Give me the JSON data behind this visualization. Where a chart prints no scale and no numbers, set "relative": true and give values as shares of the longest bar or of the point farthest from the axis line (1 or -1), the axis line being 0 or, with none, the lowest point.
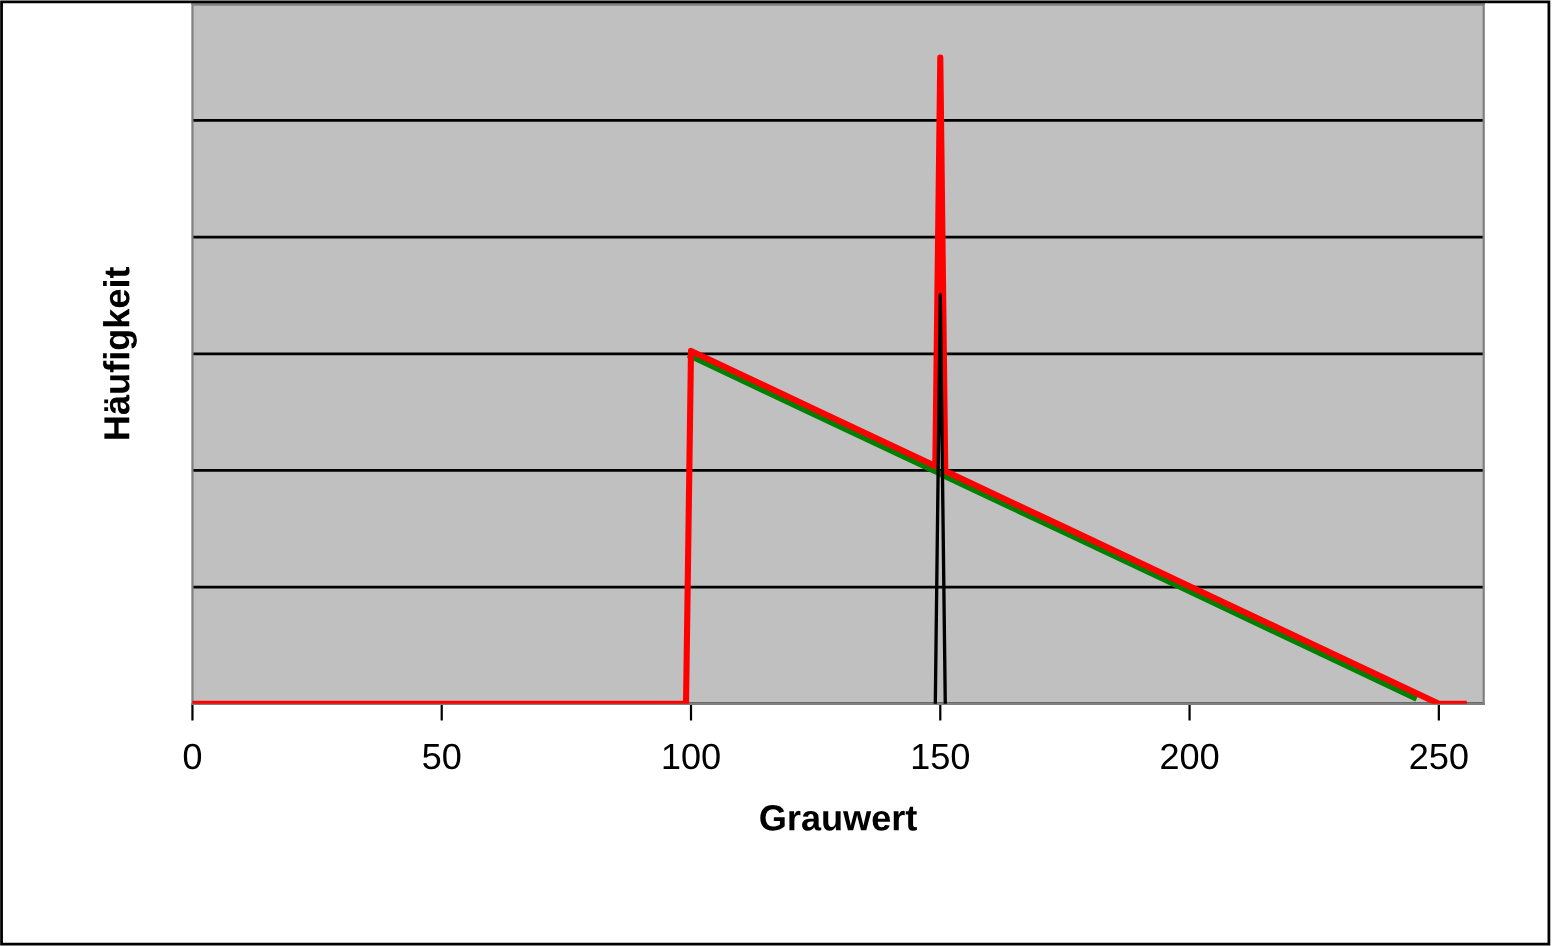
{
  "chart_data": {
    "type": "line",
    "xlabel": "Grauwert",
    "ylabel": "Häufigkeit",
    "relative": true,
    "xlim": [
      0,
      259
    ],
    "xticks": [
      0,
      50,
      100,
      150,
      200,
      250
    ],
    "grid": "y",
    "legend": false,
    "marker": "none",
    "line_style": "solid",
    "tick_labels": "x",
    "series": [
      {
        "color": "#000000",
        "x": [
          149,
          150,
          151
        ],
        "values": [
          0,
          0.633,
          0
        ]
      },
      {
        "color": "#008000",
        "x": [
          100,
          125,
          149,
          150,
          151,
          175,
          200,
          225,
          245
        ],
        "values": [
          0.538,
          0.447,
          0.36,
          0.356,
          0.352,
          0.265,
          0.174,
          0.083,
          0.01
        ]
      },
      {
        "color": "#ff0000",
        "x": [
          0,
          99,
          100,
          125,
          149,
          150,
          151,
          175,
          200,
          225,
          250,
          255
        ],
        "values": [
          0,
          0,
          0.546,
          0.455,
          0.368,
          1,
          0.36,
          0.273,
          0.182,
          0.091,
          0,
          0
        ]
      }
    ]
  }
}
